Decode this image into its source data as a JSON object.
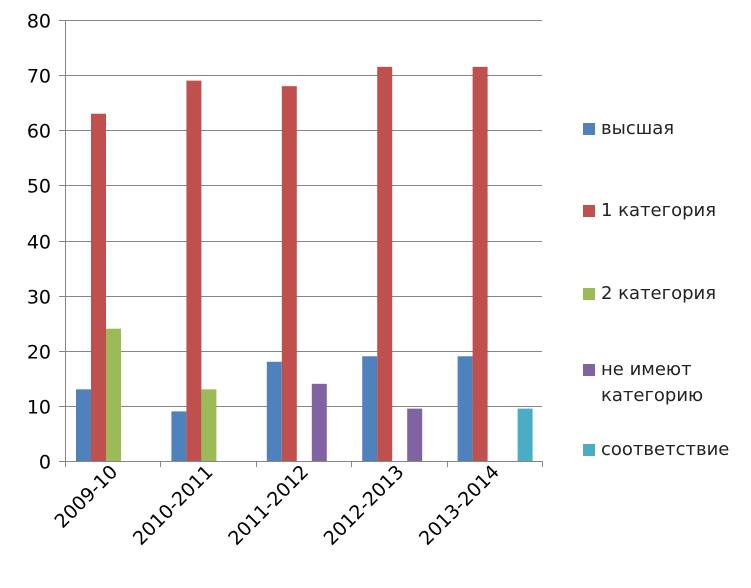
{
  "chart_data": {
    "type": "bar",
    "title": "",
    "xlabel": "",
    "ylabel": "",
    "ylim": [
      0,
      80
    ],
    "yticks": [
      0,
      10,
      20,
      30,
      40,
      50,
      60,
      70,
      80
    ],
    "grid": true,
    "legend_position": "right",
    "categories": [
      "2009-10",
      "2010-2011",
      "2011-2012",
      "2012-2013",
      "2013-2014"
    ],
    "series": [
      {
        "name": "высшая",
        "color": "#4F81BD",
        "values": [
          13,
          9,
          18,
          19,
          19
        ]
      },
      {
        "name": "1 категория",
        "color": "#C0504D",
        "values": [
          63,
          69,
          68,
          71.5,
          71.5
        ]
      },
      {
        "name": "2 категория",
        "color": "#9BBB59",
        "values": [
          24,
          13,
          null,
          null,
          null
        ]
      },
      {
        "name": "не имеют категорию",
        "color": "#8064A2",
        "values": [
          null,
          null,
          14,
          9.5,
          null
        ]
      },
      {
        "name": "соответствие",
        "color": "#4BACC6",
        "values": [
          null,
          null,
          null,
          null,
          9.5
        ]
      }
    ]
  }
}
